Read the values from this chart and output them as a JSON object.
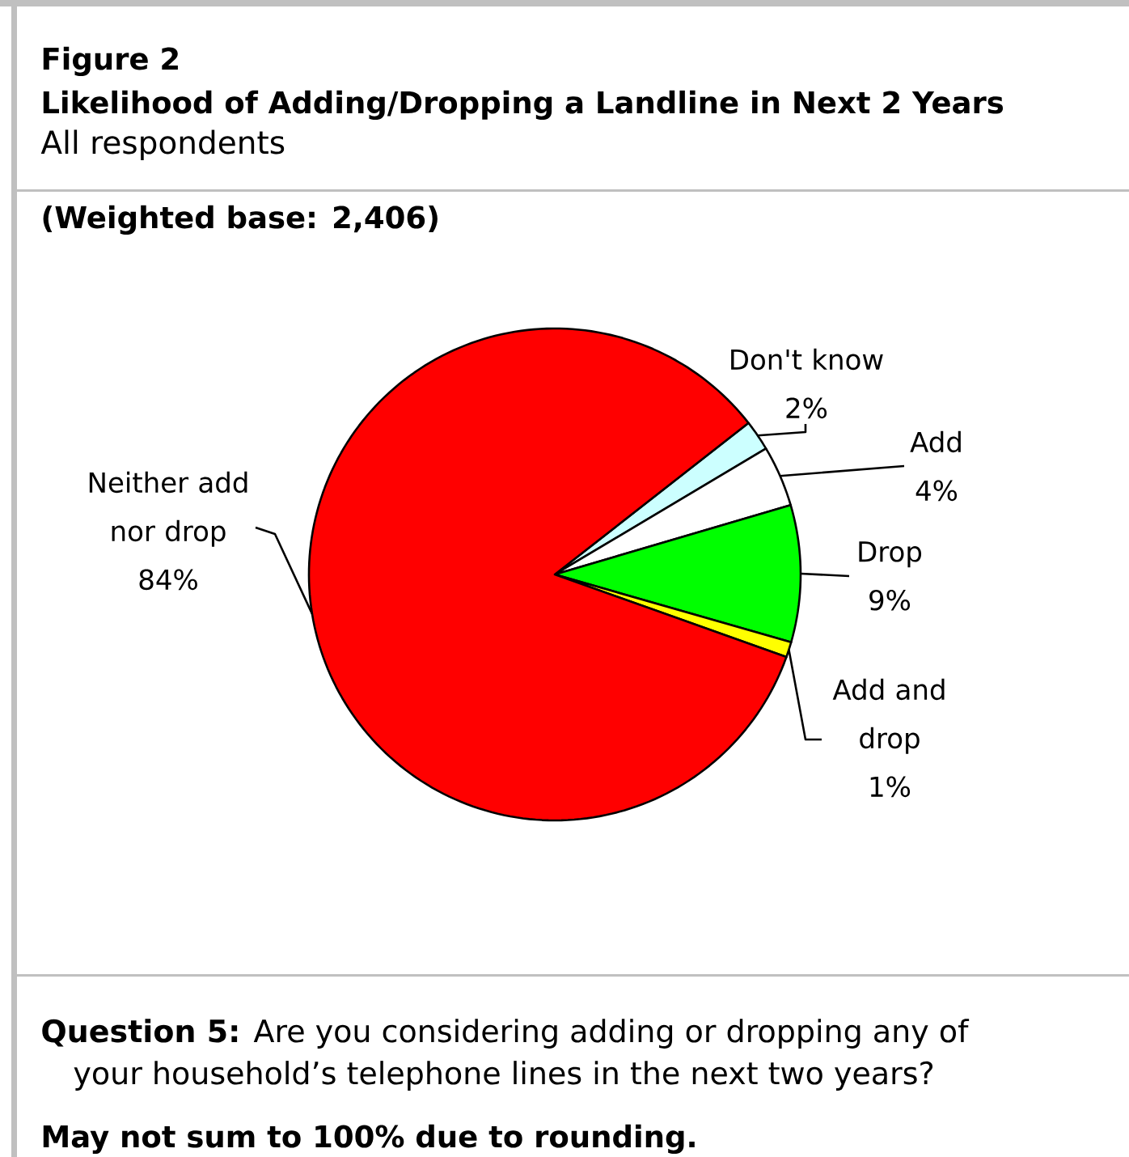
{
  "chart_data": {
    "type": "pie",
    "title": "Likelihood of Adding/Dropping a Landline in Next 2 Years",
    "subtitle": "All respondents",
    "categories": [
      "Don't know",
      "Add",
      "Drop",
      "Add and drop",
      "Neither add nor drop"
    ],
    "values": [
      2,
      4,
      9,
      1,
      84
    ],
    "colors": [
      "#ccffff",
      "#ffffff",
      "#00ff00",
      "#ffff00",
      "#ff0000"
    ],
    "value_labels": [
      "2%",
      "4%",
      "9%",
      "1%",
      "84%"
    ],
    "annotations": [
      "Figure 2",
      "(Weighted base:  2,406)",
      "**Question 5:**   Are you considering adding or dropping any of your household’s telephone lines in the next two years?",
      "May not sum to 100% due to rounding."
    ]
  }
}
